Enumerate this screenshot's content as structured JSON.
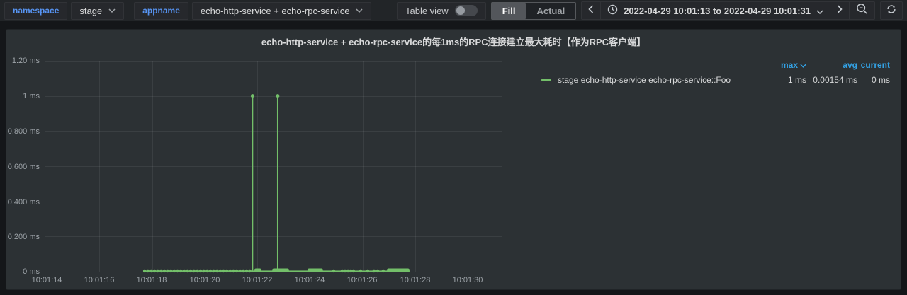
{
  "toolbar": {
    "namespace_label": "namespace",
    "namespace_value": "stage",
    "appname_label": "appname",
    "appname_value": "echo-http-service + echo-rpc-service",
    "table_view_label": "Table view",
    "table_view_state": "off",
    "fill_label": "Fill",
    "actual_label": "Actual",
    "selected_mode": "Fill",
    "time_range": "2022-04-29 10:01:13 to 2022-04-29 10:01:31",
    "icons": {
      "time_picker": "clock-icon",
      "prev": "chevron-left-icon",
      "next": "chevron-right-icon",
      "zoom_out": "magnifier-minus-icon",
      "refresh": "sync-arrows-icon",
      "dropdown": "chevron-down-icon"
    },
    "accent_blue": "#5794f2"
  },
  "panel": {
    "title": "echo-http-service + echo-rpc-service的每1ms的RPC连接建立最大耗时【作为RPC客户端】",
    "legend": {
      "headers": {
        "max": "max",
        "avg": "avg",
        "current": "current"
      },
      "sorted_by": "max",
      "header_color": "#33a2e5"
    }
  },
  "chart_data": {
    "type": "line",
    "title": "echo-http-service + echo-rpc-service的每1ms的RPC连接建立最大耗时【作为RPC客户端】",
    "unit": "ms",
    "ylim": [
      0,
      1.2
    ],
    "yticks": [
      "1.20 ms",
      "1 ms",
      "0.800 ms",
      "0.600 ms",
      "0.400 ms",
      "0.200 ms",
      "0 ms"
    ],
    "ytick_values": [
      1.2,
      1,
      0.8,
      0.6,
      0.4,
      0.2,
      0
    ],
    "xticks": [
      "10:01:14",
      "10:01:16",
      "10:01:18",
      "10:01:20",
      "10:01:22",
      "10:01:24",
      "10:01:26",
      "10:01:28",
      "10:01:30"
    ],
    "x_tick_interval_s": 2,
    "grid": true,
    "legend_position": "right-table",
    "series": [
      {
        "name": "stage echo-http-service echo-rpc-service::Foo",
        "color": "#73bf69",
        "stats": {
          "max": "1 ms",
          "avg": "0.00154 ms",
          "current": "0 ms"
        },
        "spikes": [
          {
            "t_s_after_100114": 7.82,
            "time": "10:01:21.8",
            "value_ms": 1
          },
          {
            "t_s_after_100114": 8.78,
            "time": "10:01:22.8",
            "value_ms": 1
          }
        ],
        "baseline_value_ms": 0,
        "baseline_span_s": [
          3.72,
          13.79
        ],
        "dense_marker_run_s": [
          3.72,
          7.8
        ],
        "marker_step_s": 0.125,
        "solid_runs_s": [
          [
            7.89,
            8.16
          ],
          [
            8.57,
            9.21
          ],
          [
            9.91,
            10.5
          ],
          [
            12.93,
            13.79
          ]
        ],
        "sparse_markers_s": [
          10.91,
          11.23,
          11.34,
          11.45,
          11.56,
          11.66,
          11.93,
          12.2,
          12.44,
          12.58,
          12.79
        ]
      }
    ]
  }
}
